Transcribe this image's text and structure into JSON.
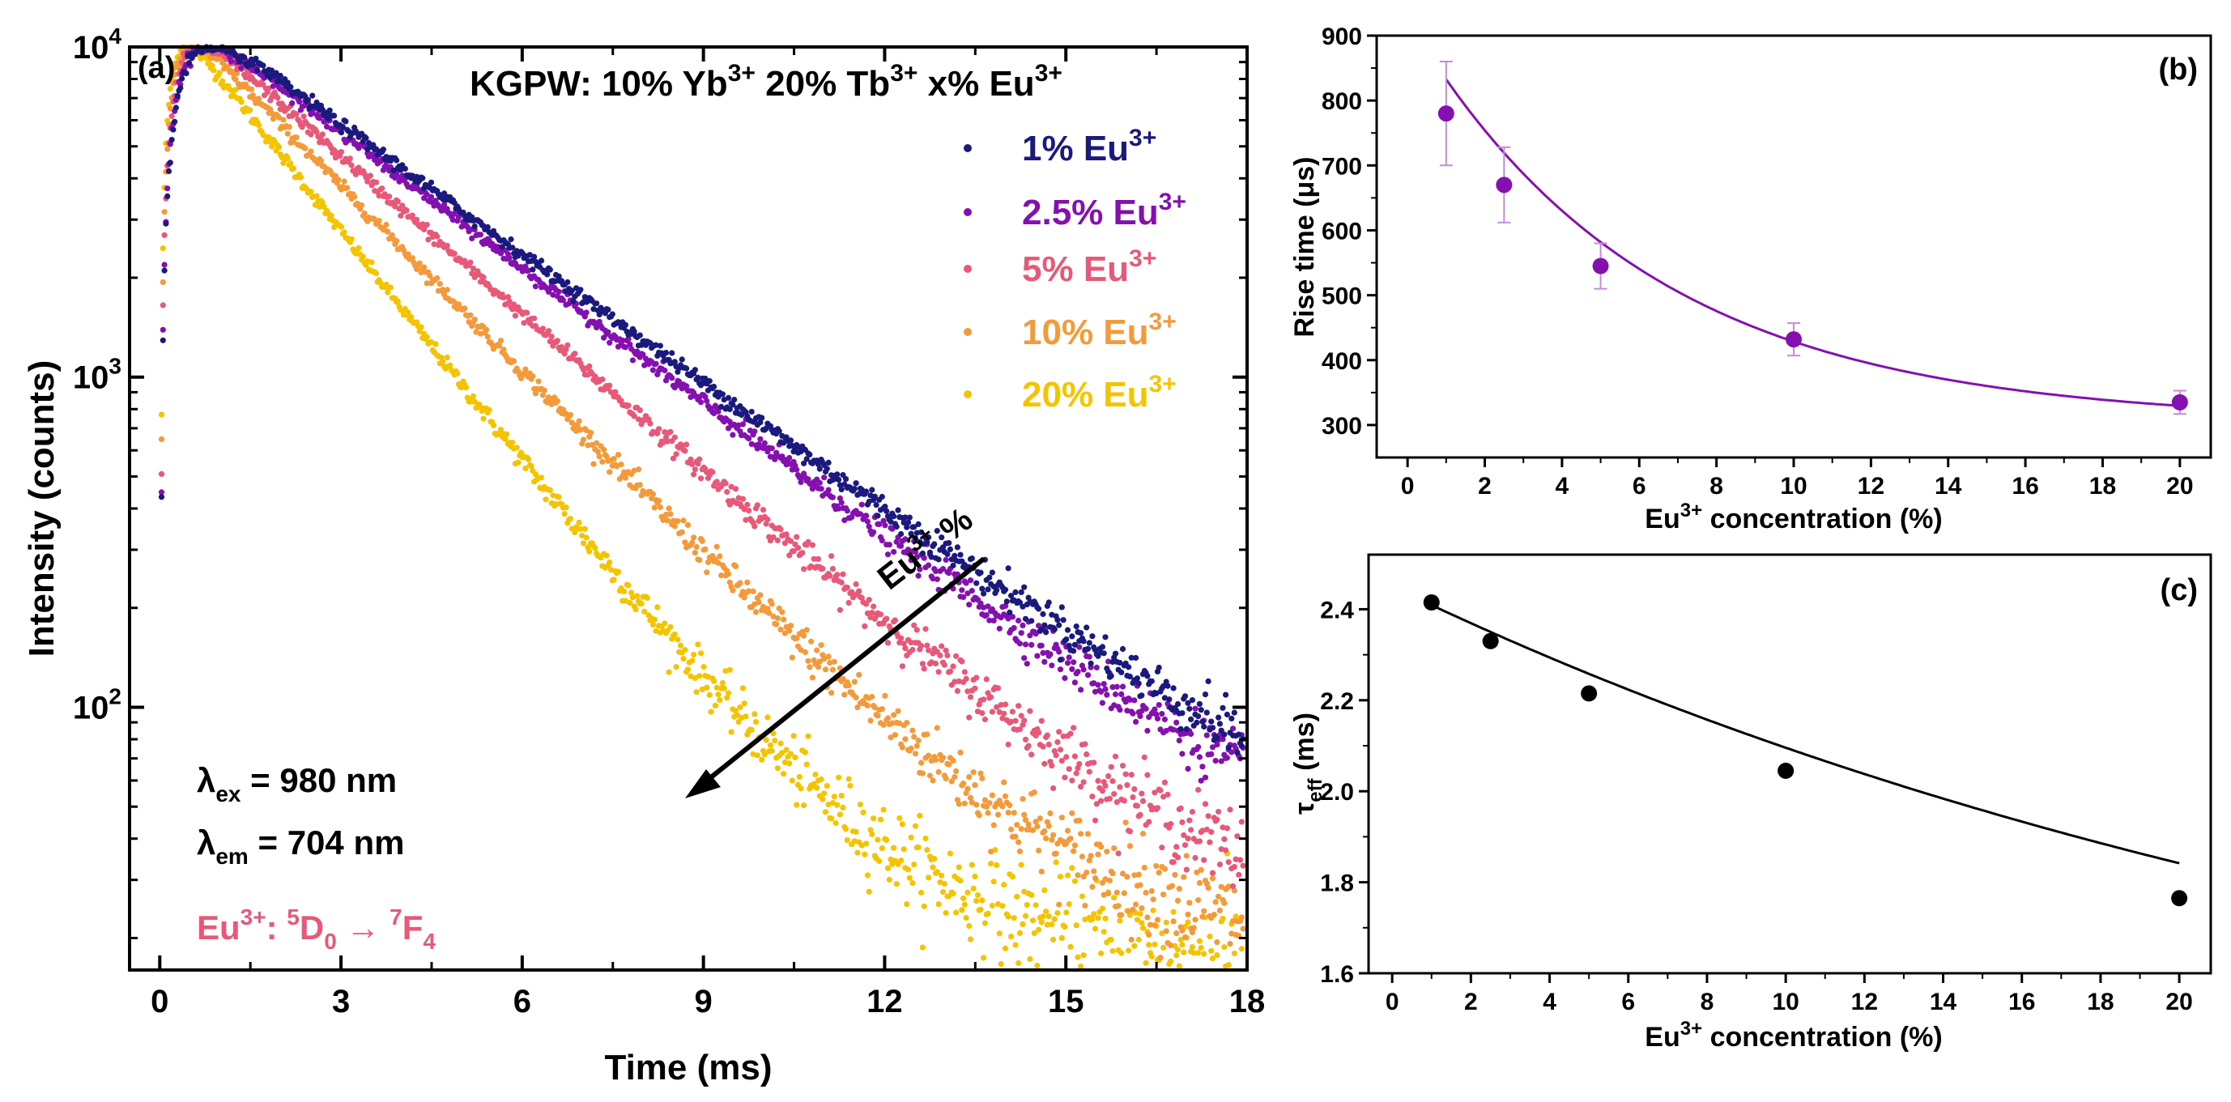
{
  "figure": {
    "panels": [
      "a",
      "b",
      "c"
    ]
  },
  "chart_data": [
    {
      "id": "a",
      "type": "scatter",
      "panel_label": "(a)",
      "title_parts": [
        "KGPW: 10% Yb",
        "3+",
        " 20% Tb",
        "3+",
        " x% Eu",
        "3+"
      ],
      "xlabel": "Time (ms)",
      "ylabel": "Intensity (counts)",
      "yscale": "log",
      "xlim": [
        -0.5,
        18
      ],
      "ylim": [
        16,
        10000
      ],
      "xticks": [
        0,
        3,
        6,
        9,
        12,
        15,
        18
      ],
      "xtick_labels": [
        "0",
        "3",
        "6",
        "9",
        "12",
        "15",
        "18"
      ],
      "yticks": [
        100,
        1000,
        10000
      ],
      "ytick_labels": [
        {
          "base": "10",
          "exp": "2"
        },
        {
          "base": "10",
          "exp": "3"
        },
        {
          "base": "10",
          "exp": "4"
        }
      ],
      "series": [
        {
          "name": "1% Eu",
          "sup": "3+",
          "color": "#1a1a7e",
          "peak_time_ms": 1.35,
          "rise_ms": 0.33,
          "decay_ms": 3.3,
          "background": 18
        },
        {
          "name": "2.5% Eu",
          "sup": "3+",
          "color": "#8510b0",
          "peak_time_ms": 1.25,
          "rise_ms": 0.3,
          "decay_ms": 3.15,
          "background": 18
        },
        {
          "name": "5% Eu",
          "sup": "3+",
          "color": "#e85878",
          "peak_time_ms": 1.1,
          "rise_ms": 0.25,
          "decay_ms": 2.7,
          "background": 17
        },
        {
          "name": "10% Eu",
          "sup": "3+",
          "color": "#f59a3a",
          "peak_time_ms": 1.0,
          "rise_ms": 0.2,
          "decay_ms": 2.3,
          "background": 17
        },
        {
          "name": "20% Eu",
          "sup": "3+",
          "color": "#f5c400",
          "peak_time_ms": 0.85,
          "rise_ms": 0.16,
          "decay_ms": 1.85,
          "background": 17
        }
      ],
      "annotations": {
        "arrow_label_main": "Eu",
        "arrow_label_sup": "3+",
        "arrow_label_tail": " %",
        "lambda_ex": {
          "symbol": "λ",
          "sub": "ex",
          "text": " = 980 nm"
        },
        "lambda_em": {
          "symbol": "λ",
          "sub": "em",
          "text": " = 704 nm"
        },
        "transition": {
          "ion": "Eu",
          "ion_sup": "3+",
          "colon": ": ",
          "from_sup": "5",
          "from": "D",
          "from_sub": "0",
          "arrow": " → ",
          "to_sup": "7",
          "to": "F",
          "to_sub": "4",
          "color": "#e85878"
        }
      }
    },
    {
      "id": "b",
      "type": "scatter",
      "panel_label": "(b)",
      "xlabel_main": "Eu",
      "xlabel_sup": "3+",
      "xlabel_tail": " concentration (%)",
      "ylabel": "Rise time (μs)",
      "xlim": [
        -0.8,
        20.8
      ],
      "ylim": [
        250,
        900
      ],
      "xticks": [
        0,
        2,
        4,
        6,
        8,
        10,
        12,
        14,
        16,
        18,
        20
      ],
      "yticks": [
        300,
        400,
        500,
        600,
        700,
        800,
        900
      ],
      "x": [
        1,
        2.5,
        5,
        10,
        20
      ],
      "y": [
        780,
        670,
        545,
        432,
        335
      ],
      "yerr": [
        80,
        58,
        35,
        25,
        18
      ],
      "color": "#8510b0",
      "fit": {
        "type": "exponential",
        "A": 620,
        "tau": 6.2,
        "offset": 305
      }
    },
    {
      "id": "c",
      "type": "scatter",
      "panel_label": "(c)",
      "xlabel_main": "Eu",
      "xlabel_sup": "3+",
      "xlabel_tail": " concentration (%)",
      "ylabel_symbol": "τ",
      "ylabel_sub": "eff",
      "ylabel_tail": " (ms)",
      "xlim": [
        -0.6,
        20.8
      ],
      "ylim": [
        1.6,
        2.52
      ],
      "xticks": [
        0,
        2,
        4,
        6,
        8,
        10,
        12,
        14,
        16,
        18,
        20
      ],
      "yticks": [
        1.6,
        1.8,
        2.0,
        2.2,
        2.4
      ],
      "ytick_labels": [
        "1.6",
        "1.8",
        "2.0",
        "2.2",
        "2.4"
      ],
      "x": [
        1,
        2.5,
        5,
        10,
        20
      ],
      "y": [
        2.415,
        2.33,
        2.215,
        2.045,
        1.765
      ],
      "color": "#000000",
      "fit": {
        "type": "exponential",
        "A": 1.25,
        "tau": 30,
        "offset": 1.2
      }
    }
  ]
}
